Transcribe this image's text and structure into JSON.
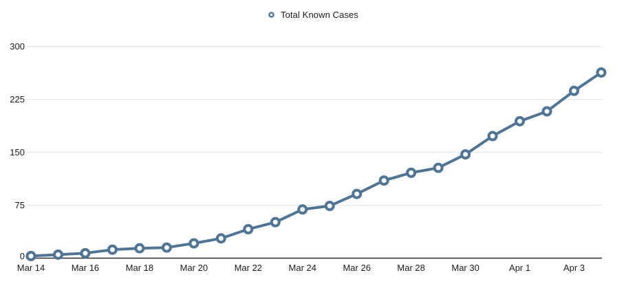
{
  "legend": {
    "label": "Total Known Cases"
  },
  "colors": {
    "series": "#4e7596",
    "marker_fill": "#ffffff",
    "grid": "#e4e4e4",
    "axis": "#2b2b2b",
    "text": "#1a1a1a",
    "background": "#ffffff"
  },
  "chart_data": {
    "type": "line",
    "title": "",
    "series_name": "Total Known Cases",
    "x": [
      "Mar 14",
      "Mar 15",
      "Mar 16",
      "Mar 17",
      "Mar 18",
      "Mar 19",
      "Mar 20",
      "Mar 21",
      "Mar 22",
      "Mar 23",
      "Mar 24",
      "Mar 25",
      "Mar 26",
      "Mar 27",
      "Mar 28",
      "Mar 29",
      "Mar 30",
      "Mar 31",
      "Apr 1",
      "Apr 2",
      "Apr 3",
      "Apr 4"
    ],
    "values": [
      3,
      5,
      7,
      12,
      14,
      15,
      21,
      28,
      41,
      51,
      69,
      74,
      91,
      110,
      121,
      128,
      147,
      173,
      194,
      208,
      237,
      263
    ],
    "xticks": [
      "Mar 14",
      "Mar 16",
      "Mar 18",
      "Mar 20",
      "Mar 22",
      "Mar 24",
      "Mar 26",
      "Mar 28",
      "Mar 30",
      "Apr 1",
      "Apr 3"
    ],
    "yticks": [
      0,
      75,
      150,
      225,
      300
    ],
    "ylim": [
      0,
      300
    ],
    "xlabel": "",
    "ylabel": "",
    "grid": "horizontal-only",
    "legend_position": "top-center",
    "marker": "open-circle"
  }
}
